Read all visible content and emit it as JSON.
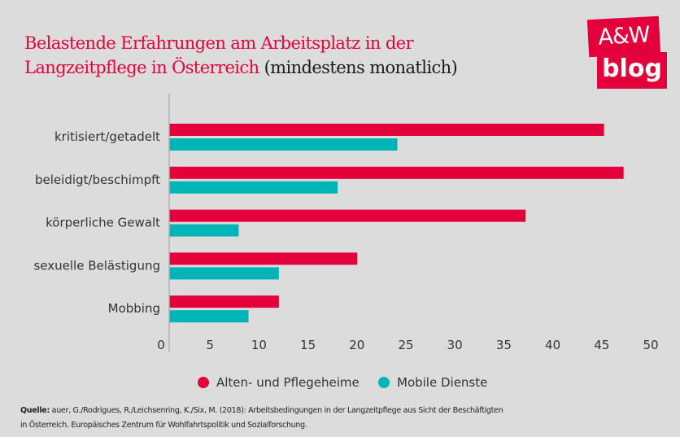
{
  "title": {
    "main": "Belastende Erfahrungen am Arbeitsplatz in der Langzeitpflege in Österreich",
    "suffix": "(mindestens monatlich)",
    "line1": "Belastende Erfahrungen am Arbeitsplatz in der",
    "line2": "Langzeitpflege in Österreich"
  },
  "logo": {
    "top": "A&W",
    "bottom": "blog"
  },
  "colors": {
    "accent": "#e4003a",
    "series1": "#e4003a",
    "series2": "#00b5b8"
  },
  "source": {
    "label": "Quelle:",
    "text": "auer, G./Rodrigues, R./Leichsenring, K./Six, M. (2018): Arbeitsbedingungen in der Langzeitpflege aus Sicht der Beschäftigten in Österreich. Europäisches Zentrum für Wohlfahrtspolitik und Sozialforschung."
  },
  "chart_data": {
    "type": "bar",
    "orientation": "horizontal",
    "title": "Belastende Erfahrungen am Arbeitsplatz in der Langzeitpflege in Österreich (mindestens monatlich)",
    "categories": [
      "kritisiert/getadelt",
      "beleidigt/beschimpft",
      "körperliche Gewalt",
      "sexuelle Belästigung",
      "Mobbing"
    ],
    "series": [
      {
        "name": "Alten- und Pflegeheime",
        "color": "#e4003a",
        "values": [
          44.4,
          46.4,
          36.4,
          19.2,
          11.2
        ]
      },
      {
        "name": "Mobile Dienste",
        "color": "#00b5b8",
        "values": [
          23.3,
          17.2,
          7.1,
          11.2,
          8.1
        ]
      }
    ],
    "xlabel": "",
    "ylabel": "",
    "xlim": [
      0,
      50
    ],
    "xticks": [
      0,
      5,
      10,
      15,
      20,
      25,
      30,
      35,
      40,
      45,
      50
    ],
    "grid": false,
    "legend": "bottom"
  }
}
